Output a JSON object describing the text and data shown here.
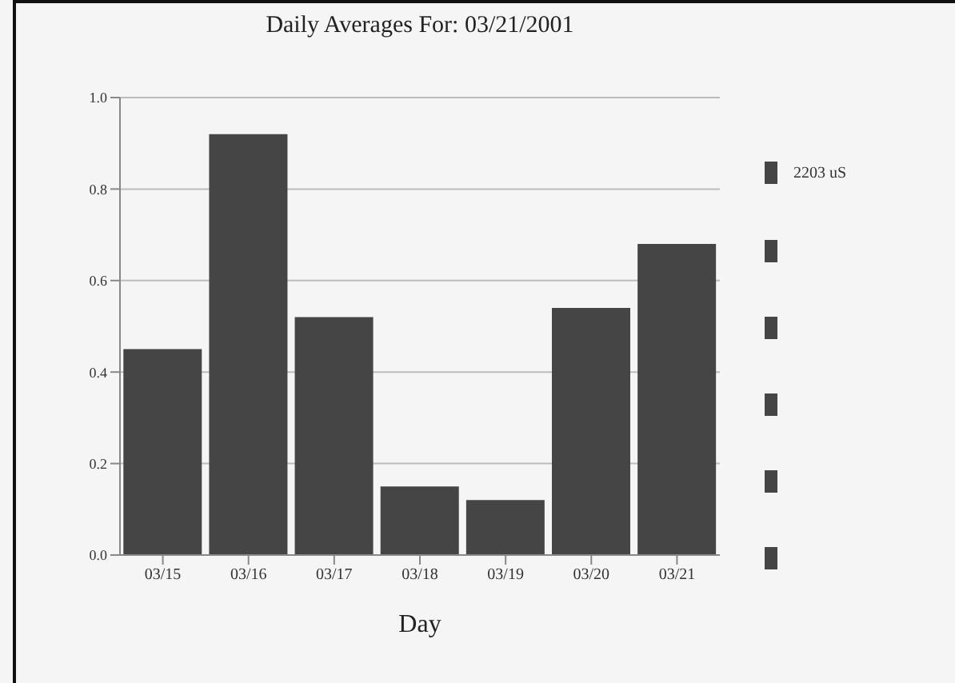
{
  "chart_data": {
    "type": "bar",
    "title": "Daily Averages For: 03/21/2001",
    "xlabel": "Day",
    "categories": [
      "03/15",
      "03/16",
      "03/17",
      "03/18",
      "03/19",
      "03/20",
      "03/21"
    ],
    "series": [
      {
        "name": "2203 uS",
        "color": "#454545",
        "values": [
          0.45,
          0.92,
          0.52,
          0.15,
          0.12,
          0.54,
          0.68
        ]
      }
    ],
    "ylim": [
      0,
      1
    ],
    "yticks": [
      {
        "value": 0,
        "label": "0.0"
      },
      {
        "value": 0.2,
        "label": "0.2"
      },
      {
        "value": 0.4,
        "label": "0.4"
      },
      {
        "value": 0.6,
        "label": "0.6"
      },
      {
        "value": 0.8,
        "label": "0.8"
      },
      {
        "value": 1,
        "label": "1.0"
      }
    ],
    "grid": "y",
    "legend": "right"
  }
}
